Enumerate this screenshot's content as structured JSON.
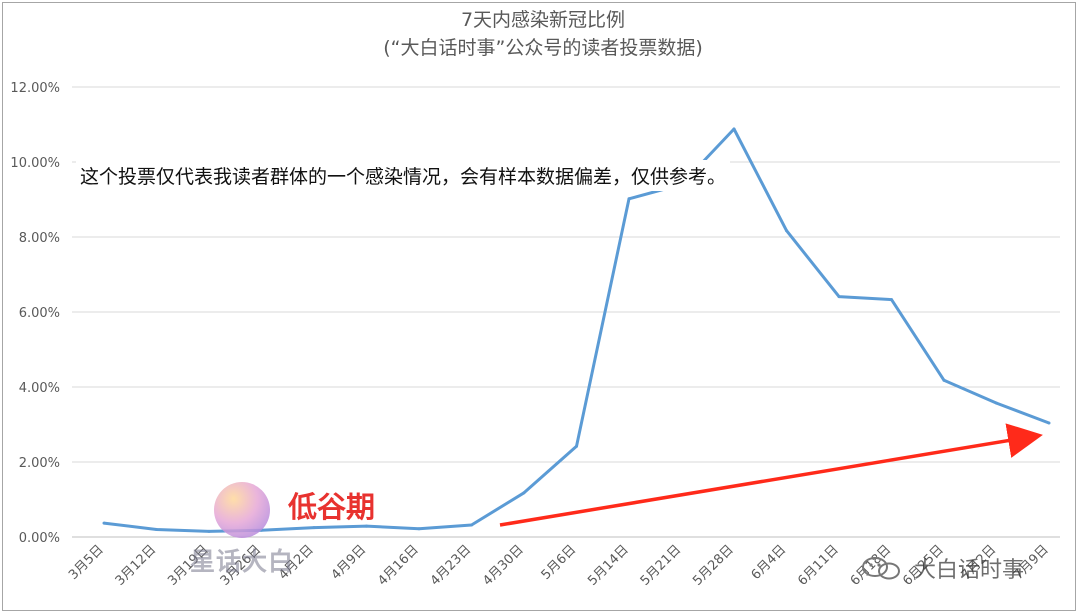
{
  "chart_data": {
    "type": "line",
    "title": "7天内感染新冠比例",
    "subtitle": "(“大白话时事”公众号的读者投票数据)",
    "categories": [
      "3月5日",
      "3月12日",
      "3月19日",
      "3月26日",
      "4月2日",
      "4月9日",
      "4月16日",
      "4月23日",
      "4月30日",
      "5月6日",
      "5月14日",
      "5月21日",
      "5月28日",
      "6月4日",
      "6月11日",
      "6月18日",
      "6月25日",
      "7月2日",
      "7月9日"
    ],
    "series": [
      {
        "values": [
          0.37,
          0.2,
          0.15,
          0.18,
          0.25,
          0.29,
          0.22,
          0.32,
          1.18,
          2.42,
          9.02,
          9.4,
          10.88,
          8.17,
          6.41,
          6.33,
          4.18,
          3.57,
          3.04
        ]
      }
    ],
    "y_ticks": [
      "0.00%",
      "2.00%",
      "4.00%",
      "6.00%",
      "8.00%",
      "10.00%",
      "12.00%"
    ],
    "ylim": [
      0,
      12
    ],
    "grid": true,
    "line_color": "#5b9bd5",
    "annotations": {
      "note": "这个投票仅代表我读者群体的一个感染情况，会有样本数据偏差，仅供参考。",
      "low_label": "低谷期",
      "arrow_color": "#ff2a1a"
    }
  },
  "watermarks": {
    "logo_text": "星话大白",
    "account_text": "大白话时事",
    "logo_icon": "bunny-logo-icon",
    "account_icon": "wechat-icon"
  }
}
